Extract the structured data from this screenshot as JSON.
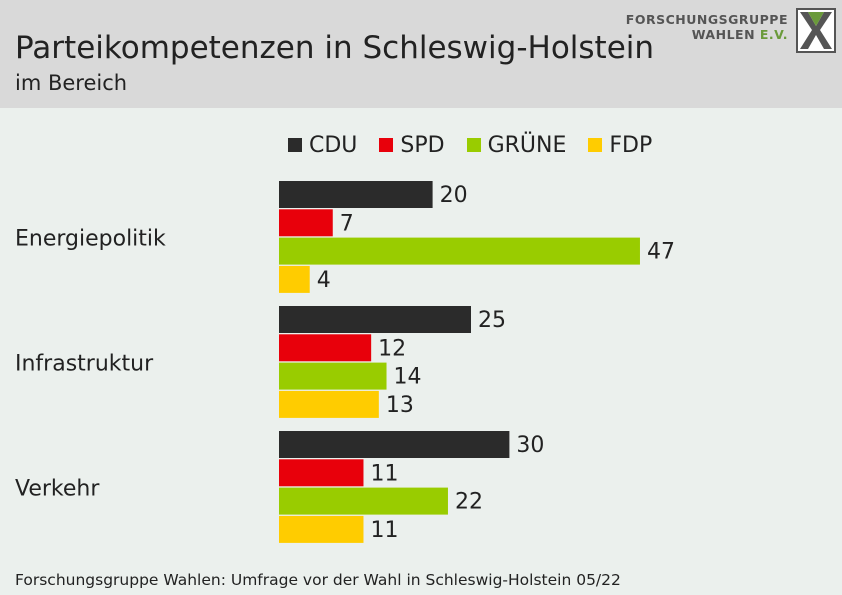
{
  "header": {
    "title": "Parteikompetenzen in Schleswig-Holstein",
    "subtitle": "im Bereich"
  },
  "logo": {
    "line1": "FORSCHUNGSGRUPPE",
    "line2": "WAHLEN",
    "line2_suffix": "E.V."
  },
  "footer": {
    "source": "Forschungsgruppe Wahlen: Umfrage vor der Wahl in Schleswig-Holstein 05/22"
  },
  "chart_data": {
    "type": "bar",
    "orientation": "horizontal",
    "categories": [
      "Energiepolitik",
      "Infrastruktur",
      "Verkehr"
    ],
    "series": [
      {
        "name": "CDU",
        "color": "#2b2b2b",
        "values": [
          20,
          25,
          30
        ]
      },
      {
        "name": "SPD",
        "color": "#e8000b",
        "values": [
          7,
          12,
          11
        ]
      },
      {
        "name": "GRÜNE",
        "color": "#99cc00",
        "values": [
          47,
          14,
          22
        ]
      },
      {
        "name": "FDP",
        "color": "#ffcc00",
        "values": [
          4,
          13,
          11
        ]
      }
    ],
    "title": "Parteikompetenzen in Schleswig-Holstein",
    "subtitle": "im Bereich",
    "xlim": [
      0,
      50
    ],
    "grid": false,
    "legend_position": "top"
  }
}
